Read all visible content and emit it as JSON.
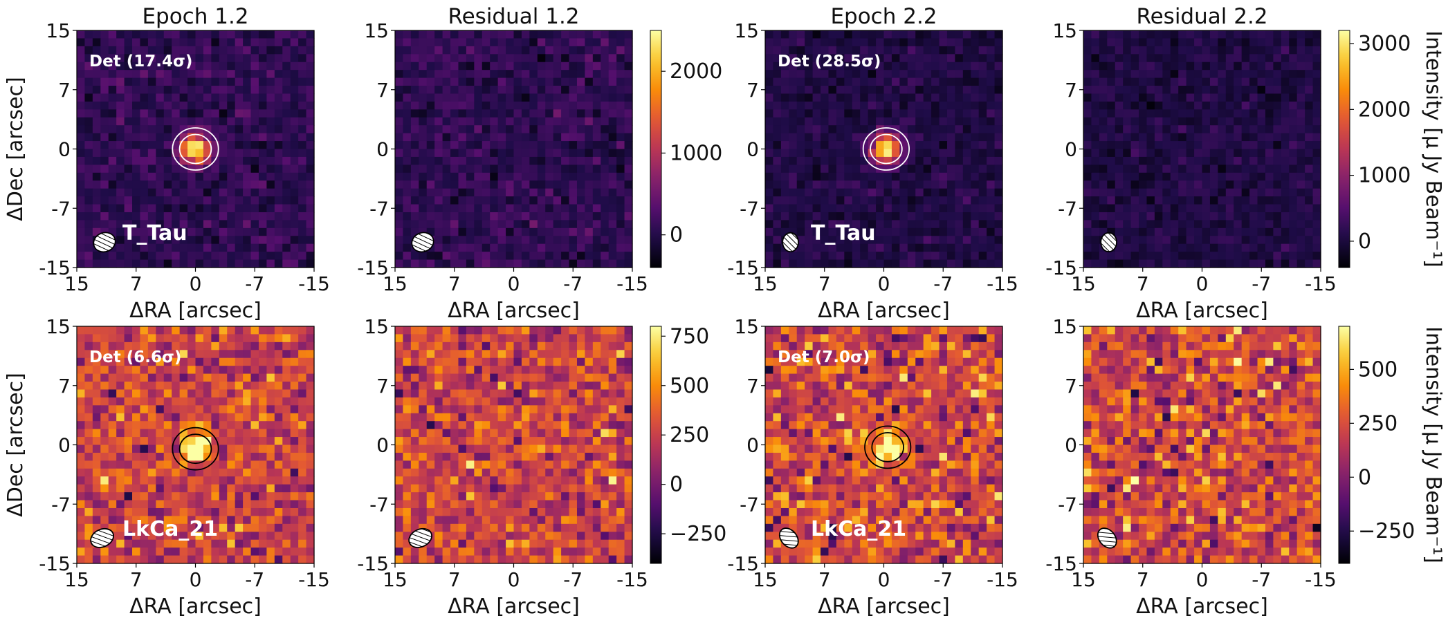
{
  "figure_title": "",
  "colormap": "inferno",
  "axis_labels": {
    "x": "ΔRA [arcsec]",
    "y": "ΔDec [arcsec]",
    "colorbar": "Intensity [μ Jy Beam⁻¹]"
  },
  "chart_data": [
    {
      "type": "heatmap",
      "title": "Epoch 1.2",
      "source": "T_Tau",
      "detection": "Det (17.4σ)",
      "xlabel": "ΔRA [arcsec]",
      "ylabel": "ΔDec [arcsec]",
      "xlim": [
        15,
        -15
      ],
      "ylim": [
        -15,
        15
      ],
      "xticks": [
        "15",
        "7",
        "0",
        "-7",
        "-15"
      ],
      "yticks": [
        "15",
        "7",
        "0",
        "-7",
        "-15"
      ],
      "grid_size": 30,
      "color_range": [
        -400,
        2500
      ],
      "background_mean": 80,
      "background_sigma": 140,
      "source_peak": 2500,
      "source_position": [
        0.0,
        0.0
      ],
      "contour_color": "#ffffff",
      "colorbar_ref": "row1",
      "beam": {
        "position": [
          11.5,
          -11.8
        ],
        "width": 2.8,
        "height": 2.4,
        "angle": -20
      }
    },
    {
      "type": "heatmap",
      "title": "Residual 1.2",
      "source": "",
      "detection": "",
      "xlabel": "ΔRA [arcsec]",
      "ylabel": "",
      "xlim": [
        15,
        -15
      ],
      "ylim": [
        -15,
        15
      ],
      "xticks": [
        "15",
        "7",
        "0",
        "-7",
        "-15"
      ],
      "yticks": [
        "15",
        "7",
        "0",
        "-7",
        "-15"
      ],
      "grid_size": 30,
      "color_range": [
        -400,
        2500
      ],
      "background_mean": 80,
      "background_sigma": 140,
      "source_peak": 0,
      "source_position": [
        0.0,
        0.0
      ],
      "contour_color": "#ffffff",
      "colorbar_ref": "row1",
      "beam": {
        "position": [
          11.5,
          -11.8
        ],
        "width": 2.8,
        "height": 2.4,
        "angle": -20
      }
    },
    {
      "type": "heatmap",
      "title": "Epoch 2.2",
      "source": "T_Tau",
      "detection": "Det (28.5σ)",
      "xlabel": "ΔRA [arcsec]",
      "ylabel": "",
      "xlim": [
        15,
        -15
      ],
      "ylim": [
        -15,
        15
      ],
      "xticks": [
        "15",
        "7",
        "0",
        "-7",
        "-15"
      ],
      "yticks": [
        "15",
        "7",
        "0",
        "-7",
        "-15"
      ],
      "grid_size": 30,
      "color_range": [
        -400,
        3200
      ],
      "background_mean": 60,
      "background_sigma": 130,
      "source_peak": 3200,
      "source_position": [
        -0.3,
        0.0
      ],
      "contour_color": "#ffffff",
      "colorbar_ref": "row1",
      "beam": {
        "position": [
          11.8,
          -11.8
        ],
        "width": 2.0,
        "height": 2.4,
        "angle": 0
      }
    },
    {
      "type": "heatmap",
      "title": "Residual 2.2",
      "source": "",
      "detection": "",
      "xlabel": "ΔRA [arcsec]",
      "ylabel": "",
      "xlim": [
        15,
        -15
      ],
      "ylim": [
        -15,
        15
      ],
      "xticks": [
        "15",
        "7",
        "0",
        "-7",
        "-15"
      ],
      "yticks": [
        "15",
        "7",
        "0",
        "-7",
        "-15"
      ],
      "grid_size": 30,
      "color_range": [
        -400,
        3200
      ],
      "background_mean": 60,
      "background_sigma": 130,
      "source_peak": 0,
      "source_position": [
        -0.3,
        0.0
      ],
      "contour_color": "#ffffff",
      "colorbar_ref": "row1",
      "beam": {
        "position": [
          11.8,
          -11.8
        ],
        "width": 2.0,
        "height": 2.4,
        "angle": 0
      }
    },
    {
      "type": "heatmap",
      "title": "",
      "source": "LkCa_21",
      "detection": "Det (6.6σ)",
      "xlabel": "ΔRA [arcsec]",
      "ylabel": "ΔDec [arcsec]",
      "xlim": [
        15,
        -15
      ],
      "ylim": [
        -15,
        15
      ],
      "xticks": [
        "15",
        "7",
        "0",
        "-7",
        "-15"
      ],
      "yticks": [
        "15",
        "7",
        "0",
        "-7",
        "-15"
      ],
      "grid_size": 30,
      "color_range": [
        -400,
        800
      ],
      "background_mean": 260,
      "background_sigma": 150,
      "source_peak": 800,
      "source_position": [
        0.0,
        -0.5
      ],
      "contour_color": "#000000",
      "colorbar_ref": "row2",
      "beam": {
        "position": [
          11.8,
          -11.8
        ],
        "width": 3.0,
        "height": 2.2,
        "angle": -25
      }
    },
    {
      "type": "heatmap",
      "title": "",
      "source": "",
      "detection": "",
      "xlabel": "ΔRA [arcsec]",
      "ylabel": "",
      "xlim": [
        15,
        -15
      ],
      "ylim": [
        -15,
        15
      ],
      "xticks": [
        "15",
        "7",
        "0",
        "-7",
        "-15"
      ],
      "yticks": [
        "15",
        "7",
        "0",
        "-7",
        "-15"
      ],
      "grid_size": 30,
      "color_range": [
        -400,
        800
      ],
      "background_mean": 260,
      "background_sigma": 150,
      "source_peak": 0,
      "source_position": [
        0.0,
        -0.5
      ],
      "contour_color": "#000000",
      "colorbar_ref": "row2",
      "beam": {
        "position": [
          11.8,
          -11.8
        ],
        "width": 3.0,
        "height": 2.2,
        "angle": -25
      }
    },
    {
      "type": "heatmap",
      "title": "",
      "source": "LkCa_21",
      "detection": "Det (7.0σ)",
      "xlabel": "ΔRA [arcsec]",
      "ylabel": "",
      "xlim": [
        15,
        -15
      ],
      "ylim": [
        -15,
        15
      ],
      "xticks": [
        "15",
        "7",
        "0",
        "-7",
        "-15"
      ],
      "yticks": [
        "15",
        "7",
        "0",
        "-7",
        "-15"
      ],
      "grid_size": 30,
      "color_range": [
        -400,
        700
      ],
      "background_mean": 220,
      "background_sigma": 160,
      "source_peak": 700,
      "source_position": [
        -0.5,
        -0.3
      ],
      "contour_color": "#000000",
      "colorbar_ref": "row2",
      "beam": {
        "position": [
          12.0,
          -11.8
        ],
        "width": 2.0,
        "height": 2.8,
        "angle": -40
      }
    },
    {
      "type": "heatmap",
      "title": "",
      "source": "",
      "detection": "",
      "xlabel": "ΔRA [arcsec]",
      "ylabel": "",
      "xlim": [
        15,
        -15
      ],
      "ylim": [
        -15,
        15
      ],
      "xticks": [
        "15",
        "7",
        "0",
        "-7",
        "-15"
      ],
      "yticks": [
        "15",
        "7",
        "0",
        "-7",
        "-15"
      ],
      "grid_size": 30,
      "color_range": [
        -400,
        700
      ],
      "background_mean": 220,
      "background_sigma": 160,
      "source_peak": 0,
      "source_position": [
        -0.5,
        -0.3
      ],
      "contour_color": "#000000",
      "colorbar_ref": "row2",
      "beam": {
        "position": [
          12.0,
          -11.8
        ],
        "width": 2.0,
        "height": 2.8,
        "angle": -40
      }
    }
  ],
  "colorbars": {
    "row1": [
      {
        "ticks": [
          0,
          1000,
          2000
        ],
        "tick_labels": [
          "0",
          "1000",
          "2000"
        ],
        "range": [
          -400,
          2500
        ]
      },
      {
        "ticks": [
          0,
          1000,
          2000,
          3000
        ],
        "tick_labels": [
          "0",
          "1000",
          "2000",
          "3000"
        ],
        "range": [
          -400,
          3200
        ]
      }
    ],
    "row2": [
      {
        "ticks": [
          -250,
          0,
          250,
          500,
          750
        ],
        "tick_labels": [
          "−250",
          "0",
          "250",
          "500",
          "750"
        ],
        "range": [
          -400,
          800
        ]
      },
      {
        "ticks": [
          -250,
          0,
          250,
          500
        ],
        "tick_labels": [
          "−250",
          "0",
          "250",
          "500"
        ],
        "range": [
          -400,
          700
        ]
      }
    ]
  }
}
